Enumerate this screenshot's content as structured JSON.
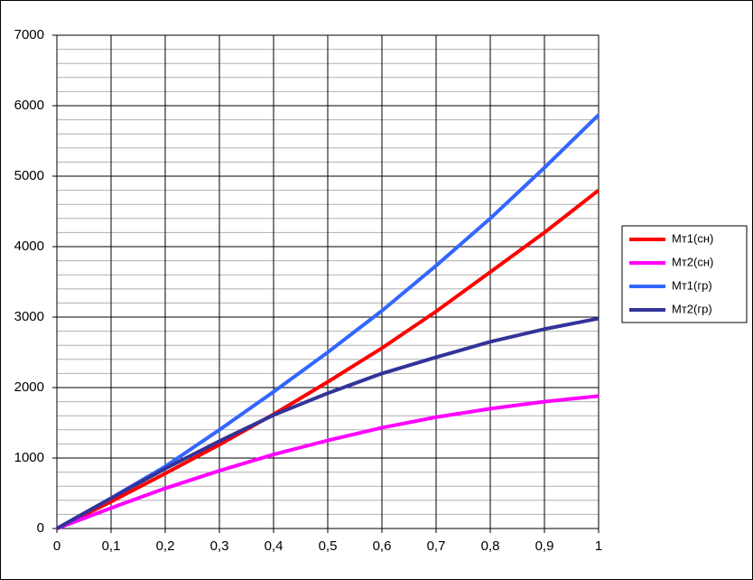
{
  "chart_data": {
    "type": "line",
    "x": [
      0,
      0.1,
      0.2,
      0.3,
      0.4,
      0.5,
      0.6,
      0.7,
      0.8,
      0.9,
      1
    ],
    "series": [
      {
        "name": "Мт1(сн)",
        "color": "#ff0000",
        "values": [
          0,
          380,
          780,
          1190,
          1620,
          2080,
          2560,
          3080,
          3640,
          4200,
          4800
        ]
      },
      {
        "name": "Мт2(сн)",
        "color": "#ff00ff",
        "values": [
          0,
          290,
          570,
          820,
          1050,
          1250,
          1430,
          1580,
          1700,
          1800,
          1880
        ]
      },
      {
        "name": "Мт1(гр)",
        "color": "#3366ff",
        "values": [
          0,
          430,
          880,
          1400,
          1940,
          2500,
          3090,
          3730,
          4400,
          5120,
          5870
        ]
      },
      {
        "name": "Мт2(гр)",
        "color": "#333399",
        "values": [
          0,
          430,
          850,
          1240,
          1610,
          1920,
          2200,
          2430,
          2650,
          2830,
          2980
        ]
      }
    ],
    "xlim": [
      0,
      1
    ],
    "xticks": [
      0,
      {
        "value": 0.1,
        "label": "0,1"
      },
      {
        "value": 0.2,
        "label": "0,2"
      },
      {
        "value": 0.3,
        "label": "0,3"
      },
      {
        "value": 0.4,
        "label": "0,4"
      },
      {
        "value": 0.5,
        "label": "0,5"
      },
      {
        "value": 0.6,
        "label": "0,6"
      },
      {
        "value": 0.7,
        "label": "0,7"
      },
      {
        "value": 0.8,
        "label": "0,8"
      },
      {
        "value": 0.9,
        "label": "0,9"
      },
      1
    ],
    "ylim": [
      0,
      7000
    ],
    "yticks": [
      0,
      1000,
      2000,
      3000,
      4000,
      5000,
      6000,
      7000
    ],
    "yminorticks": [
      200,
      400,
      600,
      800,
      1200,
      1400,
      1600,
      1800,
      2200,
      2400,
      2600,
      2800,
      3200,
      3400,
      3600,
      3800,
      4200,
      4400,
      4600,
      4800,
      5200,
      5400,
      5600,
      5800,
      6200,
      6400,
      6600,
      6800
    ],
    "grid": true,
    "legend": "right"
  }
}
